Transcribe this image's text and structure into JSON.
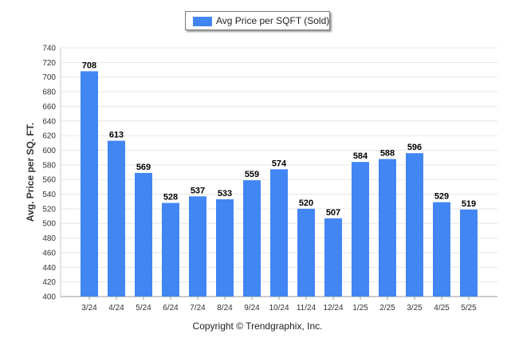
{
  "chart_data": {
    "type": "bar",
    "categories": [
      "3/24",
      "4/24",
      "5/24",
      "6/24",
      "7/24",
      "8/24",
      "9/24",
      "10/24",
      "11/24",
      "12/24",
      "1/25",
      "2/25",
      "3/25",
      "4/25",
      "5/25"
    ],
    "series": [
      {
        "name": "Avg Price per SQFT (Sold)",
        "values": [
          708,
          613,
          569,
          528,
          537,
          533,
          559,
          574,
          520,
          507,
          584,
          588,
          596,
          529,
          519
        ]
      }
    ],
    "ylabel": "Avg. Price per SQ. FT.",
    "xlabel": "",
    "ylim": [
      400,
      740
    ],
    "yticks": [
      400,
      420,
      440,
      460,
      480,
      500,
      520,
      540,
      560,
      580,
      600,
      620,
      640,
      660,
      680,
      700,
      720,
      740
    ],
    "grid": true,
    "legend": "top-center",
    "bar_color": "#4286f4"
  },
  "footer": {
    "copyright": "Copyright © Trendgraphix, Inc."
  }
}
